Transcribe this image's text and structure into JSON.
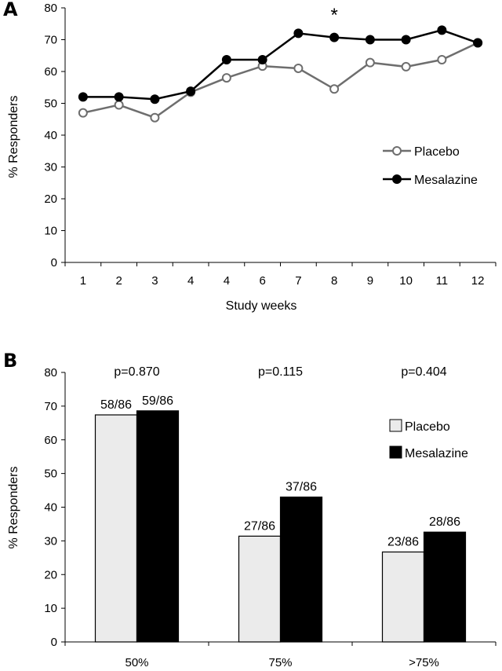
{
  "chart_data": [
    {
      "panel": "A",
      "type": "line",
      "title": "",
      "xlabel": "Study weeks",
      "ylabel": "% Responders",
      "x": [
        "1",
        "2",
        "3",
        "4",
        "4",
        "6",
        "7",
        "8",
        "9",
        "10",
        "11",
        "12"
      ],
      "ylim": [
        0,
        80
      ],
      "yticks": [
        "0",
        "10",
        "20",
        "30",
        "40",
        "50",
        "60",
        "70",
        "80"
      ],
      "series": [
        {
          "name": "Placebo",
          "color": "#6e6e6e",
          "marker": "open-circle",
          "values": [
            47,
            49.5,
            45.5,
            53.5,
            58,
            61.7,
            61,
            54.5,
            62.8,
            61.5,
            63.7,
            69
          ]
        },
        {
          "name": "Mesalazine",
          "color": "#000000",
          "marker": "filled-circle",
          "values": [
            52,
            52,
            51.3,
            53.8,
            63.7,
            63.7,
            72,
            70.7,
            70,
            70,
            73,
            69
          ]
        }
      ],
      "annotations": [
        {
          "text": "*",
          "x": "8"
        }
      ],
      "legend_position": "right"
    },
    {
      "panel": "B",
      "type": "bar",
      "title": "",
      "xlabel": "",
      "ylabel": "% Responders",
      "categories": [
        "50%",
        "75%",
        ">75%"
      ],
      "ylim": [
        0,
        80
      ],
      "yticks": [
        "0",
        "10",
        "20",
        "30",
        "40",
        "50",
        "60",
        "70",
        "80"
      ],
      "series": [
        {
          "name": "Placebo",
          "color": "#ebebeb",
          "values": [
            67.4,
            31.4,
            26.7
          ],
          "labels": [
            "58/86",
            "27/86",
            "23/86"
          ]
        },
        {
          "name": "Mesalazine",
          "color": "#000000",
          "values": [
            68.6,
            43.0,
            32.6
          ],
          "labels": [
            "59/86",
            "37/86",
            "28/86"
          ]
        }
      ],
      "p_values": [
        "p=0.870",
        "p=0.115",
        "p=0.404"
      ],
      "legend_position": "right"
    }
  ]
}
